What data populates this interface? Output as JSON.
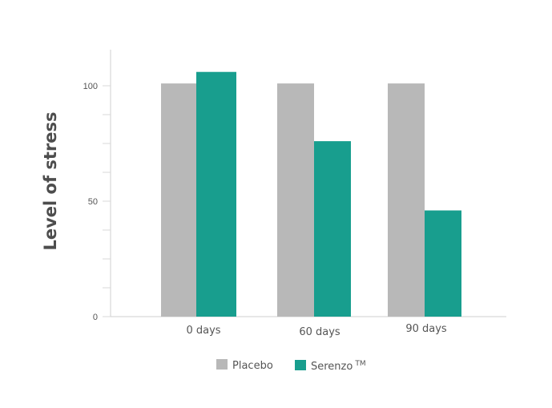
{
  "chart_data": {
    "type": "bar",
    "ylabel": "Level of stress",
    "xlabel": "",
    "ylim": [
      0,
      105
    ],
    "yticks": [
      0,
      50,
      100
    ],
    "categories": [
      "0 days",
      "60 days",
      "90 days"
    ],
    "series": [
      {
        "name": "Placebo",
        "tm": "",
        "color": "#b8b8b8",
        "values": [
          101,
          101,
          101
        ]
      },
      {
        "name": "Serenzo",
        "tm": "TM",
        "color": "#189e8e",
        "values": [
          106,
          76,
          46
        ]
      }
    ],
    "legend_position": "bottom",
    "grid": false
  }
}
